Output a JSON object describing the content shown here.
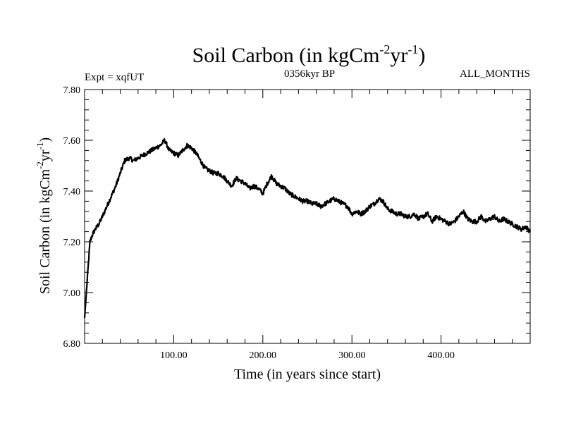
{
  "chart_data": {
    "type": "line",
    "title": "Soil Carbon (in kgCm",
    "title_exp1": "-2",
    "title_mid": "yr",
    "title_exp2": "-1",
    "title_end": ")",
    "subtitle_left": "Expt = xqfUT",
    "subtitle_center": "0356kyr BP",
    "subtitle_right": "ALL_MONTHS",
    "xlabel": "Time (in years since start)",
    "ylabel": "Soil Carbon (in kgCm",
    "ylabel_exp1": "-2",
    "ylabel_mid": "yr",
    "ylabel_exp2": "-1",
    "ylabel_end": ")",
    "xlim": [
      0,
      500
    ],
    "ylim": [
      6.8,
      7.8
    ],
    "xticks": [
      100,
      200,
      300,
      400
    ],
    "xtick_labels": [
      "100.00",
      "200.00",
      "300.00",
      "400.00"
    ],
    "yticks": [
      6.8,
      7.0,
      7.2,
      7.4,
      7.6,
      7.8
    ],
    "ytick_labels": [
      "6.80",
      "7.00",
      "7.20",
      "7.40",
      "7.60",
      "7.80"
    ],
    "grid": false,
    "series": [
      {
        "name": "Soil Carbon",
        "color": "#000000",
        "x": [
          0,
          3,
          6,
          9,
          12,
          16,
          20,
          25,
          30,
          35,
          40,
          45,
          50,
          55,
          60,
          65,
          70,
          75,
          80,
          85,
          90,
          95,
          100,
          105,
          110,
          115,
          120,
          125,
          130,
          135,
          140,
          145,
          150,
          155,
          160,
          165,
          170,
          175,
          180,
          185,
          190,
          195,
          200,
          205,
          210,
          215,
          220,
          225,
          230,
          235,
          240,
          245,
          250,
          255,
          260,
          265,
          270,
          275,
          280,
          285,
          290,
          295,
          300,
          305,
          310,
          315,
          320,
          325,
          330,
          335,
          340,
          345,
          350,
          355,
          360,
          365,
          370,
          375,
          380,
          385,
          390,
          395,
          400,
          405,
          410,
          415,
          420,
          425,
          430,
          435,
          440,
          445,
          450,
          455,
          460,
          465,
          470,
          475,
          480,
          485,
          490,
          495,
          500
        ],
        "values": [
          6.9,
          7.05,
          7.2,
          7.23,
          7.25,
          7.27,
          7.3,
          7.34,
          7.38,
          7.42,
          7.47,
          7.52,
          7.53,
          7.52,
          7.53,
          7.54,
          7.55,
          7.56,
          7.57,
          7.58,
          7.6,
          7.56,
          7.55,
          7.54,
          7.56,
          7.58,
          7.57,
          7.55,
          7.52,
          7.49,
          7.48,
          7.47,
          7.47,
          7.46,
          7.44,
          7.42,
          7.45,
          7.44,
          7.43,
          7.41,
          7.42,
          7.41,
          7.39,
          7.43,
          7.46,
          7.43,
          7.42,
          7.41,
          7.39,
          7.38,
          7.37,
          7.36,
          7.36,
          7.35,
          7.35,
          7.34,
          7.35,
          7.36,
          7.37,
          7.36,
          7.35,
          7.34,
          7.31,
          7.32,
          7.31,
          7.32,
          7.34,
          7.35,
          7.37,
          7.36,
          7.33,
          7.32,
          7.31,
          7.31,
          7.3,
          7.3,
          7.31,
          7.29,
          7.3,
          7.31,
          7.28,
          7.3,
          7.29,
          7.28,
          7.27,
          7.28,
          7.3,
          7.32,
          7.29,
          7.28,
          7.28,
          7.3,
          7.28,
          7.29,
          7.3,
          7.28,
          7.29,
          7.28,
          7.27,
          7.26,
          7.25,
          7.26,
          7.24
        ]
      }
    ]
  }
}
